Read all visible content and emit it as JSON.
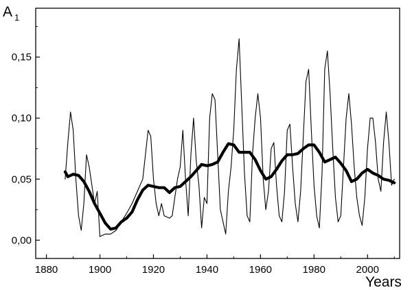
{
  "chart_data": {
    "type": "line",
    "title": "",
    "xlabel": "Years",
    "ylabel": "A",
    "ylabel_subscript": "1",
    "xlim": [
      1876,
      2012
    ],
    "ylim": [
      -0.015,
      0.19
    ],
    "xticks": [
      1880,
      1900,
      1920,
      1940,
      1960,
      1980,
      2000
    ],
    "xtick_labels": [
      "1880",
      "1900",
      "1920",
      "1940",
      "1960",
      "1980",
      "2000"
    ],
    "yticks": [
      0.0,
      0.05,
      0.1,
      0.15
    ],
    "ytick_labels": [
      "0,00",
      "0,05",
      "0,10",
      "0,15"
    ],
    "grid": false,
    "legend": "none",
    "colors": {
      "line": "#000000",
      "axes": "#000000",
      "background": "#ffffff"
    },
    "series": [
      {
        "style": "thin",
        "x": [
          1887,
          1888,
          1889,
          1890,
          1891,
          1892,
          1893,
          1894,
          1895,
          1896,
          1897,
          1898,
          1899,
          1900,
          1902,
          1904,
          1906,
          1908,
          1910,
          1912,
          1914,
          1916,
          1917,
          1918,
          1919,
          1920,
          1921,
          1922,
          1923,
          1924,
          1926,
          1927,
          1928,
          1929,
          1930,
          1931,
          1932,
          1933,
          1934,
          1935,
          1936,
          1937,
          1938,
          1939,
          1940,
          1941,
          1942,
          1943,
          1944,
          1945,
          1946,
          1947,
          1948,
          1949,
          1950,
          1951,
          1952,
          1953,
          1954,
          1955,
          1956,
          1957,
          1958,
          1959,
          1960,
          1961,
          1962,
          1963,
          1964,
          1965,
          1966,
          1967,
          1968,
          1969,
          1970,
          1971,
          1972,
          1973,
          1974,
          1975,
          1976,
          1977,
          1978,
          1979,
          1980,
          1981,
          1982,
          1983,
          1984,
          1985,
          1986,
          1987,
          1988,
          1989,
          1990,
          1991,
          1992,
          1993,
          1994,
          1995,
          1996,
          1997,
          1998,
          1999,
          2000,
          2001,
          2002,
          2003,
          2004,
          2005,
          2006,
          2007,
          2008,
          2009,
          2010
        ],
        "y": [
          0.05,
          0.08,
          0.105,
          0.09,
          0.05,
          0.02,
          0.008,
          0.03,
          0.07,
          0.06,
          0.045,
          0.03,
          0.04,
          0.003,
          0.005,
          0.005,
          0.008,
          0.015,
          0.022,
          0.03,
          0.04,
          0.05,
          0.07,
          0.09,
          0.085,
          0.05,
          0.03,
          0.02,
          0.03,
          0.02,
          0.018,
          0.02,
          0.035,
          0.05,
          0.06,
          0.09,
          0.05,
          0.02,
          0.07,
          0.1,
          0.065,
          0.045,
          0.01,
          0.035,
          0.03,
          0.1,
          0.12,
          0.115,
          0.07,
          0.025,
          0.015,
          0.005,
          0.04,
          0.06,
          0.09,
          0.14,
          0.165,
          0.11,
          0.055,
          0.02,
          0.015,
          0.07,
          0.1,
          0.12,
          0.1,
          0.05,
          0.025,
          0.04,
          0.075,
          0.08,
          0.045,
          0.02,
          0.015,
          0.04,
          0.09,
          0.095,
          0.06,
          0.03,
          0.015,
          0.04,
          0.085,
          0.13,
          0.14,
          0.09,
          0.045,
          0.02,
          0.01,
          0.055,
          0.14,
          0.155,
          0.12,
          0.075,
          0.035,
          0.015,
          0.02,
          0.06,
          0.1,
          0.12,
          0.095,
          0.06,
          0.035,
          0.02,
          0.012,
          0.035,
          0.075,
          0.1,
          0.1,
          0.08,
          0.05,
          0.04,
          0.08,
          0.105,
          0.08,
          0.045,
          0.05
        ]
      },
      {
        "style": "thick",
        "x": [
          1887,
          1888,
          1890,
          1892,
          1894,
          1896,
          1898,
          1900,
          1902,
          1904,
          1906,
          1908,
          1910,
          1912,
          1914,
          1916,
          1918,
          1920,
          1922,
          1924,
          1926,
          1928,
          1930,
          1932,
          1934,
          1936,
          1938,
          1940,
          1942,
          1944,
          1946,
          1948,
          1950,
          1952,
          1954,
          1956,
          1958,
          1960,
          1962,
          1964,
          1966,
          1968,
          1970,
          1972,
          1974,
          1976,
          1978,
          1980,
          1982,
          1984,
          1986,
          1988,
          1990,
          1992,
          1994,
          1996,
          1998,
          2000,
          2002,
          2004,
          2006,
          2008,
          2010
        ],
        "y": [
          0.056,
          0.052,
          0.054,
          0.053,
          0.048,
          0.04,
          0.03,
          0.022,
          0.014,
          0.009,
          0.01,
          0.015,
          0.018,
          0.023,
          0.033,
          0.041,
          0.045,
          0.044,
          0.043,
          0.043,
          0.039,
          0.043,
          0.044,
          0.048,
          0.052,
          0.057,
          0.062,
          0.061,
          0.062,
          0.064,
          0.072,
          0.079,
          0.078,
          0.072,
          0.072,
          0.072,
          0.066,
          0.057,
          0.05,
          0.052,
          0.058,
          0.065,
          0.07,
          0.07,
          0.071,
          0.075,
          0.078,
          0.078,
          0.072,
          0.064,
          0.066,
          0.068,
          0.063,
          0.057,
          0.048,
          0.05,
          0.055,
          0.058,
          0.055,
          0.053,
          0.05,
          0.049,
          0.047
        ]
      }
    ]
  }
}
